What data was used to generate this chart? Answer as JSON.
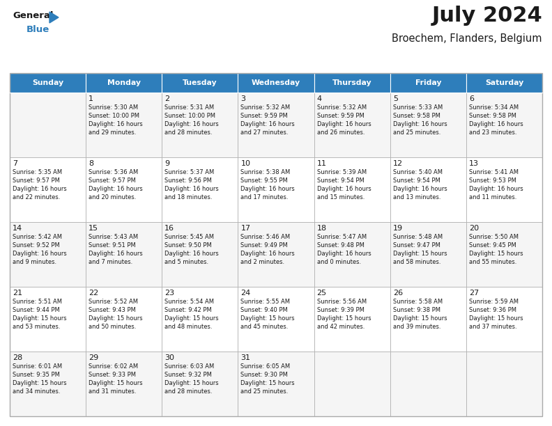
{
  "title": "July 2024",
  "subtitle": "Broechem, Flanders, Belgium",
  "header_bg": "#2e7ebb",
  "header_text_color": "#ffffff",
  "row0_bg": "#f5f5f5",
  "row1_bg": "#ffffff",
  "row2_bg": "#f5f5f5",
  "row3_bg": "#ffffff",
  "row4_bg": "#f5f5f5",
  "border_color": "#aaaaaa",
  "title_color": "#1a1a1a",
  "subtitle_color": "#1a1a1a",
  "text_color": "#1a1a1a",
  "days_of_week": [
    "Sunday",
    "Monday",
    "Tuesday",
    "Wednesday",
    "Thursday",
    "Friday",
    "Saturday"
  ],
  "calendar_data": [
    [
      "",
      "1\nSunrise: 5:30 AM\nSunset: 10:00 PM\nDaylight: 16 hours\nand 29 minutes.",
      "2\nSunrise: 5:31 AM\nSunset: 10:00 PM\nDaylight: 16 hours\nand 28 minutes.",
      "3\nSunrise: 5:32 AM\nSunset: 9:59 PM\nDaylight: 16 hours\nand 27 minutes.",
      "4\nSunrise: 5:32 AM\nSunset: 9:59 PM\nDaylight: 16 hours\nand 26 minutes.",
      "5\nSunrise: 5:33 AM\nSunset: 9:58 PM\nDaylight: 16 hours\nand 25 minutes.",
      "6\nSunrise: 5:34 AM\nSunset: 9:58 PM\nDaylight: 16 hours\nand 23 minutes."
    ],
    [
      "7\nSunrise: 5:35 AM\nSunset: 9:57 PM\nDaylight: 16 hours\nand 22 minutes.",
      "8\nSunrise: 5:36 AM\nSunset: 9:57 PM\nDaylight: 16 hours\nand 20 minutes.",
      "9\nSunrise: 5:37 AM\nSunset: 9:56 PM\nDaylight: 16 hours\nand 18 minutes.",
      "10\nSunrise: 5:38 AM\nSunset: 9:55 PM\nDaylight: 16 hours\nand 17 minutes.",
      "11\nSunrise: 5:39 AM\nSunset: 9:54 PM\nDaylight: 16 hours\nand 15 minutes.",
      "12\nSunrise: 5:40 AM\nSunset: 9:54 PM\nDaylight: 16 hours\nand 13 minutes.",
      "13\nSunrise: 5:41 AM\nSunset: 9:53 PM\nDaylight: 16 hours\nand 11 minutes."
    ],
    [
      "14\nSunrise: 5:42 AM\nSunset: 9:52 PM\nDaylight: 16 hours\nand 9 minutes.",
      "15\nSunrise: 5:43 AM\nSunset: 9:51 PM\nDaylight: 16 hours\nand 7 minutes.",
      "16\nSunrise: 5:45 AM\nSunset: 9:50 PM\nDaylight: 16 hours\nand 5 minutes.",
      "17\nSunrise: 5:46 AM\nSunset: 9:49 PM\nDaylight: 16 hours\nand 2 minutes.",
      "18\nSunrise: 5:47 AM\nSunset: 9:48 PM\nDaylight: 16 hours\nand 0 minutes.",
      "19\nSunrise: 5:48 AM\nSunset: 9:47 PM\nDaylight: 15 hours\nand 58 minutes.",
      "20\nSunrise: 5:50 AM\nSunset: 9:45 PM\nDaylight: 15 hours\nand 55 minutes."
    ],
    [
      "21\nSunrise: 5:51 AM\nSunset: 9:44 PM\nDaylight: 15 hours\nand 53 minutes.",
      "22\nSunrise: 5:52 AM\nSunset: 9:43 PM\nDaylight: 15 hours\nand 50 minutes.",
      "23\nSunrise: 5:54 AM\nSunset: 9:42 PM\nDaylight: 15 hours\nand 48 minutes.",
      "24\nSunrise: 5:55 AM\nSunset: 9:40 PM\nDaylight: 15 hours\nand 45 minutes.",
      "25\nSunrise: 5:56 AM\nSunset: 9:39 PM\nDaylight: 15 hours\nand 42 minutes.",
      "26\nSunrise: 5:58 AM\nSunset: 9:38 PM\nDaylight: 15 hours\nand 39 minutes.",
      "27\nSunrise: 5:59 AM\nSunset: 9:36 PM\nDaylight: 15 hours\nand 37 minutes."
    ],
    [
      "28\nSunrise: 6:01 AM\nSunset: 9:35 PM\nDaylight: 15 hours\nand 34 minutes.",
      "29\nSunrise: 6:02 AM\nSunset: 9:33 PM\nDaylight: 15 hours\nand 31 minutes.",
      "30\nSunrise: 6:03 AM\nSunset: 9:32 PM\nDaylight: 15 hours\nand 28 minutes.",
      "31\nSunrise: 6:05 AM\nSunset: 9:30 PM\nDaylight: 15 hours\nand 25 minutes.",
      "",
      "",
      ""
    ]
  ],
  "logo_color_general": "#1a1a1a",
  "logo_color_blue": "#2e7ebb",
  "logo_triangle_color": "#2e7ebb",
  "figsize": [
    7.92,
    6.12
  ],
  "dpi": 100
}
